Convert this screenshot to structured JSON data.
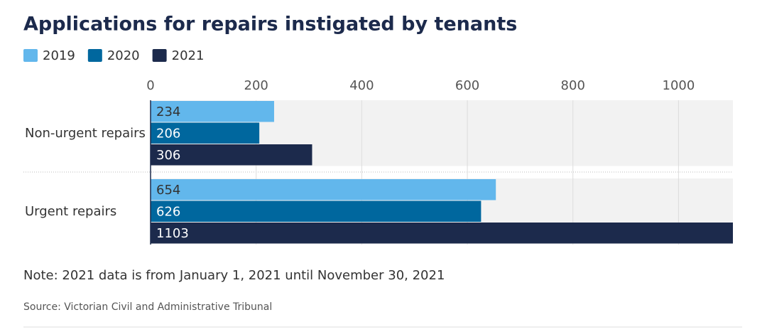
{
  "chart_data": {
    "type": "hbar",
    "title": "Applications for repairs instigated by tenants",
    "categories": [
      "Non-urgent repairs",
      "Urgent repairs"
    ],
    "series": [
      {
        "name": "2019",
        "color": "#62b7ec",
        "values": [
          234,
          654
        ]
      },
      {
        "name": "2020",
        "color": "#00679e",
        "values": [
          206,
          626
        ]
      },
      {
        "name": "2021",
        "color": "#1c2a4c",
        "values": [
          306,
          1103
        ]
      }
    ],
    "xlim": [
      0,
      1103
    ],
    "xticks": [
      0,
      200,
      400,
      600,
      800,
      1000
    ],
    "grid": true,
    "note": "Note: 2021 data is from January 1, 2021 until November 30, 2021",
    "source": "Source: Victorian Civil and Administrative Tribunal"
  }
}
